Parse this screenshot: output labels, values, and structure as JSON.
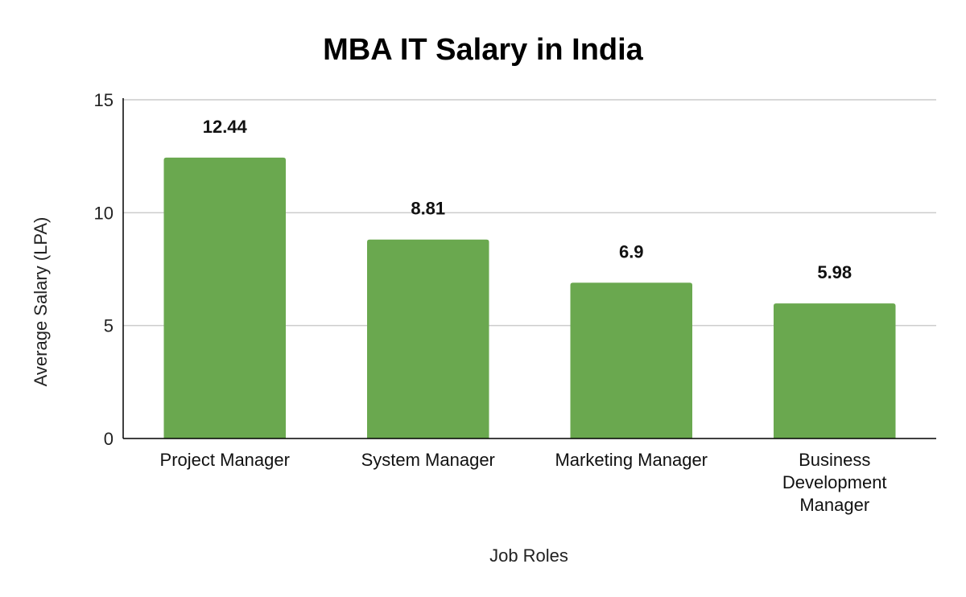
{
  "chart_data": {
    "type": "bar",
    "title": "MBA IT Salary in India",
    "xlabel": "Job Roles",
    "ylabel": "Average Salary (LPA)",
    "categories": [
      [
        "Project Manager"
      ],
      [
        "System Manager"
      ],
      [
        "Marketing Manager"
      ],
      [
        "Business",
        "Development",
        "Manager"
      ]
    ],
    "values": [
      12.44,
      8.81,
      6.9,
      5.98
    ],
    "data_labels": [
      "12.44",
      "8.81",
      "6.9",
      "5.98"
    ],
    "ylim": [
      0,
      15
    ],
    "yticks": [
      0,
      5,
      10,
      15
    ],
    "grid": true,
    "bar_color": "#6aa84f",
    "gridline_color": "#cccccc",
    "axis_color": "#000000"
  }
}
